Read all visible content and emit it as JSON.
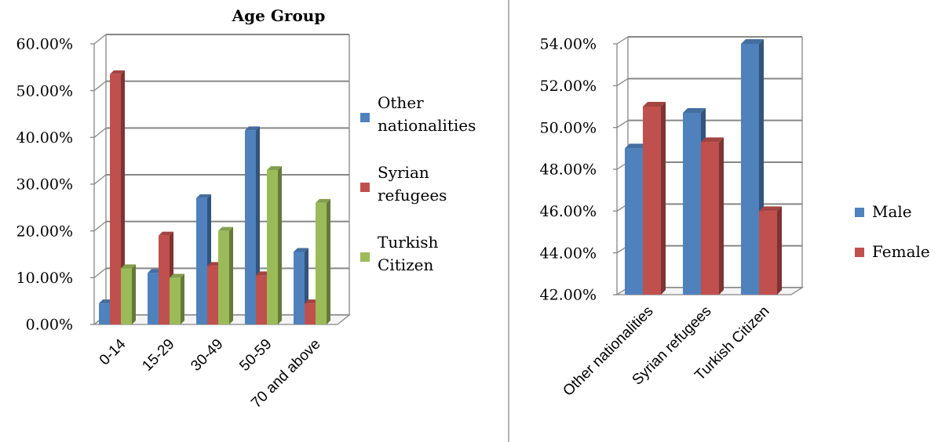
{
  "colors": {
    "blue": "#4F81BD",
    "red": "#C0504D",
    "green": "#9BBB59",
    "grid": "#868686",
    "divider": "#808080"
  },
  "chart_data": [
    {
      "type": "bar",
      "title": "Age Group",
      "categories": [
        "0-14",
        "15-29",
        "30-49",
        "50-59",
        "70 and above"
      ],
      "y_tick_labels": [
        "0.00%",
        "10.00%",
        "20.00%",
        "30.00%",
        "40.00%",
        "50.00%",
        "60.00%"
      ],
      "ylim": [
        0,
        60
      ],
      "grid": true,
      "legend_position": "right",
      "series": [
        {
          "name": "Other nationalities",
          "color_key": "blue",
          "values": [
            4.5,
            11,
            27,
            41.5,
            15.5
          ]
        },
        {
          "name": "Syrian refugees",
          "color_key": "red",
          "values": [
            53.5,
            19,
            12.5,
            10.5,
            4.5
          ]
        },
        {
          "name": "Turkish Citizen",
          "color_key": "green",
          "values": [
            12,
            10,
            20,
            33,
            26
          ]
        }
      ]
    },
    {
      "type": "bar",
      "title": "",
      "categories": [
        "Other nationalities",
        "Syrian refugees",
        "Turkish Citizen"
      ],
      "y_tick_labels": [
        "42.00%",
        "44.00%",
        "46.00%",
        "48.00%",
        "50.00%",
        "52.00%",
        "54.00%"
      ],
      "ylim": [
        42,
        54
      ],
      "grid": true,
      "legend_position": "right",
      "series": [
        {
          "name": "Male",
          "color_key": "blue",
          "values": [
            49,
            50.7,
            54
          ]
        },
        {
          "name": "Female",
          "color_key": "red",
          "values": [
            51,
            49.3,
            46
          ]
        }
      ]
    }
  ]
}
